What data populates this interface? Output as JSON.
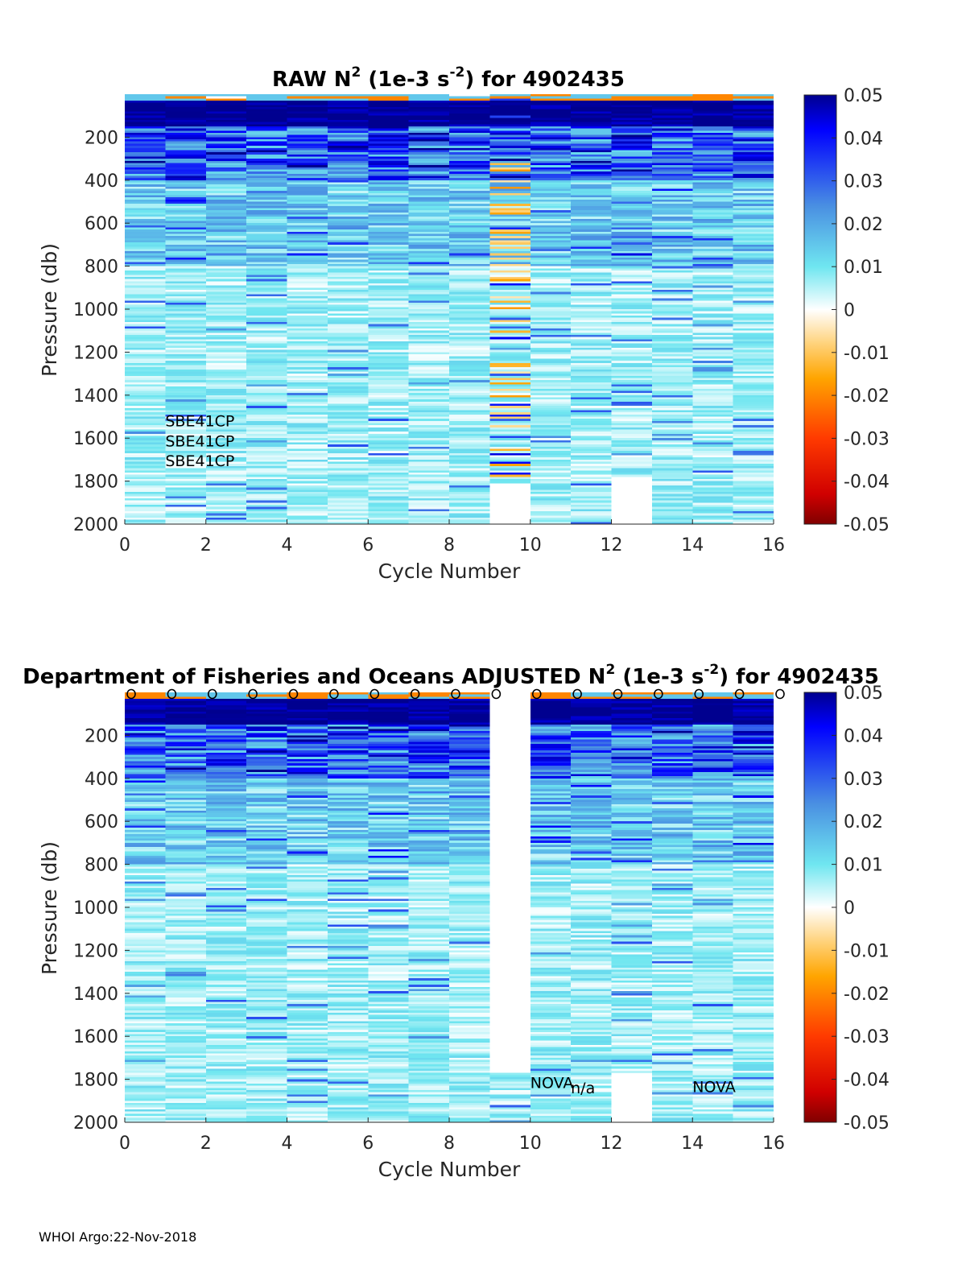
{
  "chart_data": [
    {
      "type": "heatmap",
      "title_prefix": "RAW N",
      "title_sup1": "2",
      "title_mid": " (1e-3 s",
      "title_sup2": "-2",
      "title_suffix": ") for 4902435",
      "xlabel": "Cycle Number",
      "ylabel": "Pressure (db)",
      "xlim": [
        0,
        16
      ],
      "ylim": [
        0,
        2000
      ],
      "y_reversed": true,
      "xticks": [
        "0",
        "2",
        "4",
        "6",
        "8",
        "10",
        "12",
        "14",
        "16"
      ],
      "yticks": [
        "200",
        "400",
        "600",
        "800",
        "1000",
        "1200",
        "1400",
        "1600",
        "1800",
        "2000"
      ],
      "colorbar": {
        "range": [
          -0.05,
          0.05
        ],
        "ticks": [
          "0.05",
          "0.04",
          "0.03",
          "0.02",
          "0.01",
          "0",
          "-0.01",
          "-0.02",
          "-0.03",
          "-0.04",
          "-0.05"
        ]
      },
      "cycles": [
        {
          "cycle": 0,
          "max_pressure": 2000
        },
        {
          "cycle": 1,
          "max_pressure": 2000
        },
        {
          "cycle": 2,
          "max_pressure": 2000
        },
        {
          "cycle": 3,
          "max_pressure": 2000
        },
        {
          "cycle": 4,
          "max_pressure": 2000
        },
        {
          "cycle": 5,
          "max_pressure": 2000
        },
        {
          "cycle": 6,
          "max_pressure": 2000
        },
        {
          "cycle": 7,
          "max_pressure": 2000
        },
        {
          "cycle": 8,
          "max_pressure": 2000
        },
        {
          "cycle": 9,
          "max_pressure": 1810,
          "noisy": true
        },
        {
          "cycle": 10,
          "max_pressure": 2000
        },
        {
          "cycle": 11,
          "max_pressure": 2000
        },
        {
          "cycle": 12,
          "max_pressure": 1780
        },
        {
          "cycle": 13,
          "max_pressure": 2000
        },
        {
          "cycle": 14,
          "max_pressure": 2000
        },
        {
          "cycle": 15,
          "max_pressure": 2000
        }
      ],
      "annotations": [
        {
          "text": "SBE41CP",
          "x": 1,
          "y": 1545
        },
        {
          "text": "SBE41CP",
          "x": 1,
          "y": 1638
        },
        {
          "text": "SBE41CP",
          "x": 1,
          "y": 1731
        }
      ],
      "markers": []
    },
    {
      "type": "heatmap",
      "title_prefix": "Department of Fisheries and Oceans  ADJUSTED N",
      "title_sup1": "2",
      "title_mid": " (1e-3 s",
      "title_sup2": "-2",
      "title_suffix": ") for 4902435",
      "xlabel": "Cycle Number",
      "ylabel": "Pressure (db)",
      "xlim": [
        0,
        16
      ],
      "ylim": [
        0,
        2000
      ],
      "y_reversed": true,
      "xticks": [
        "0",
        "2",
        "4",
        "6",
        "8",
        "10",
        "12",
        "14",
        "16"
      ],
      "yticks": [
        "200",
        "400",
        "600",
        "800",
        "1000",
        "1200",
        "1400",
        "1600",
        "1800",
        "2000"
      ],
      "colorbar": {
        "range": [
          -0.05,
          0.05
        ],
        "ticks": [
          "0.05",
          "0.04",
          "0.03",
          "0.02",
          "0.01",
          "0",
          "-0.01",
          "-0.02",
          "-0.03",
          "-0.04",
          "-0.05"
        ]
      },
      "cycles": [
        {
          "cycle": 0,
          "max_pressure": 2000
        },
        {
          "cycle": 1,
          "max_pressure": 2000
        },
        {
          "cycle": 2,
          "max_pressure": 2000
        },
        {
          "cycle": 3,
          "max_pressure": 2000
        },
        {
          "cycle": 4,
          "max_pressure": 2000
        },
        {
          "cycle": 5,
          "max_pressure": 2000
        },
        {
          "cycle": 6,
          "max_pressure": 2000
        },
        {
          "cycle": 7,
          "max_pressure": 2000
        },
        {
          "cycle": 8,
          "max_pressure": 2000
        },
        {
          "cycle": 9,
          "max_pressure": 2000,
          "gap_to": 1770
        },
        {
          "cycle": 10,
          "max_pressure": 2000
        },
        {
          "cycle": 11,
          "max_pressure": 2000
        },
        {
          "cycle": 12,
          "max_pressure": 1770
        },
        {
          "cycle": 13,
          "max_pressure": 2000
        },
        {
          "cycle": 14,
          "max_pressure": 2000
        },
        {
          "cycle": 15,
          "max_pressure": 2000
        }
      ],
      "annotations": [
        {
          "text": "NOVA",
          "x": 10,
          "y": 1840,
          "size": "large"
        },
        {
          "text": "n/a",
          "x": 11,
          "y": 1865
        },
        {
          "text": "NOVA",
          "x": 14,
          "y": 1860
        }
      ],
      "markers": {
        "symbol": "o",
        "cycles": [
          0,
          1,
          2,
          3,
          4,
          5,
          6,
          7,
          8,
          9,
          10,
          11,
          12,
          13,
          14,
          15,
          16
        ]
      }
    }
  ],
  "footer": "WHOI Argo:22-Nov-2018"
}
